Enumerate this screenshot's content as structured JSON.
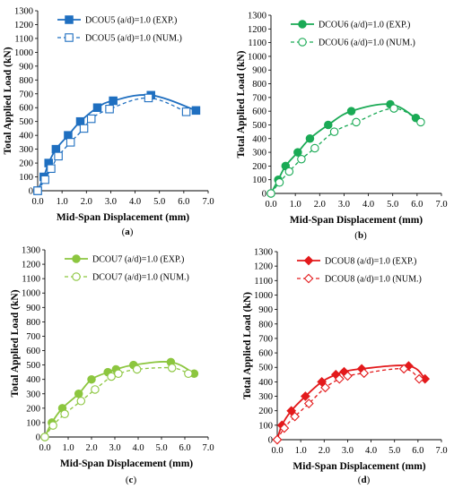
{
  "chart_data": [
    {
      "type": "line",
      "panel_label": "a",
      "xlabel": "Mid-Span Displacement (mm)",
      "ylabel": "Total Applied Load  (kN)",
      "xlim": [
        0,
        7
      ],
      "ylim": [
        0,
        1300
      ],
      "xticks": [
        "0.0",
        "1.0",
        "2.0",
        "3.0",
        "4.0",
        "5.0",
        "6.0",
        "7.0"
      ],
      "yticks": [
        "0",
        "100",
        "200",
        "300",
        "400",
        "500",
        "600",
        "700",
        "800",
        "900",
        "1000",
        "1100",
        "1200",
        "1300"
      ],
      "grid": false,
      "legend_position": "top-center",
      "color": "#1f6fc0",
      "marker": "square",
      "series": [
        {
          "name": "DCOU5 (a/d)=1.0 (EXP.)",
          "style": "solid",
          "fill": true,
          "x": [
            0,
            0.25,
            0.45,
            0.75,
            1.25,
            1.75,
            2.45,
            3.1,
            4.65,
            6.5
          ],
          "y": [
            0,
            100,
            200,
            300,
            400,
            500,
            600,
            650,
            690,
            580
          ]
        },
        {
          "name": "DCOU5 (a/d)=1.0 (NUM.)",
          "style": "dashed",
          "fill": false,
          "x": [
            0,
            0.3,
            0.55,
            0.85,
            1.35,
            1.9,
            2.2,
            2.95,
            4.55,
            6.1
          ],
          "y": [
            0,
            80,
            160,
            250,
            350,
            450,
            520,
            590,
            670,
            570
          ]
        }
      ]
    },
    {
      "type": "line",
      "panel_label": "b",
      "xlabel": "Mid-Span Displacement (mm)",
      "ylabel": "Total Applied Load  (kN)",
      "xlim": [
        0,
        7
      ],
      "ylim": [
        0,
        1300
      ],
      "xticks": [
        "0.0",
        "1.0",
        "2.0",
        "3.0",
        "4.0",
        "5.0",
        "6.0",
        "7.0"
      ],
      "yticks": [
        "0",
        "100",
        "200",
        "300",
        "400",
        "500",
        "600",
        "700",
        "800",
        "900",
        "1000",
        "1100",
        "1200",
        "1300"
      ],
      "grid": false,
      "legend_position": "top-center",
      "color": "#1aaa55",
      "marker": "circle",
      "series": [
        {
          "name": "DCOU6 (a/d)=1.0 (EXP.)",
          "style": "solid",
          "fill": true,
          "x": [
            0,
            0.3,
            0.6,
            1.1,
            1.6,
            2.35,
            3.3,
            4.9,
            5.95
          ],
          "y": [
            0,
            100,
            200,
            300,
            400,
            500,
            600,
            650,
            550
          ]
        },
        {
          "name": "DCOU6 (a/d)=1.0 (NUM.)",
          "style": "dashed",
          "fill": false,
          "x": [
            0,
            0.35,
            0.75,
            1.25,
            1.8,
            2.6,
            3.5,
            5.05,
            6.15
          ],
          "y": [
            0,
            80,
            160,
            250,
            330,
            450,
            520,
            620,
            520
          ]
        }
      ]
    },
    {
      "type": "line",
      "panel_label": "c",
      "xlabel": "Mid-Span Displacement (mm)",
      "ylabel": "Total Applied Load  (kN)",
      "xlim": [
        0,
        7
      ],
      "ylim": [
        0,
        1300
      ],
      "xticks": [
        "0.0",
        "1.0",
        "2.0",
        "3.0",
        "4.0",
        "5.0",
        "6.0",
        "7.0"
      ],
      "yticks": [
        "0",
        "100",
        "200",
        "300",
        "400",
        "500",
        "600",
        "700",
        "800",
        "900",
        "1000",
        "1100",
        "1200",
        "1300"
      ],
      "grid": false,
      "legend_position": "top-center",
      "color": "#8cc63f",
      "marker": "circle",
      "series": [
        {
          "name": "DCOU7 (a/d)=1.0 (EXP.)",
          "style": "solid",
          "fill": true,
          "x": [
            0,
            0.3,
            0.75,
            1.45,
            2.0,
            2.7,
            3.05,
            3.8,
            5.4,
            6.4
          ],
          "y": [
            0,
            100,
            200,
            300,
            400,
            450,
            470,
            500,
            520,
            440
          ]
        },
        {
          "name": "DCOU7 (a/d)=1.0 (NUM.)",
          "style": "dashed",
          "fill": false,
          "x": [
            0,
            0.35,
            0.85,
            1.55,
            2.15,
            2.85,
            3.15,
            3.95,
            5.45,
            6.15
          ],
          "y": [
            0,
            80,
            160,
            250,
            330,
            420,
            440,
            470,
            480,
            440
          ]
        }
      ]
    },
    {
      "type": "line",
      "panel_label": "d",
      "xlabel": "Mid-Span Displacement (mm)",
      "ylabel": "Total Applied Load  (kN)",
      "xlim": [
        0,
        7
      ],
      "ylim": [
        0,
        1300
      ],
      "xticks": [
        "0.0",
        "1.0",
        "2.0",
        "3.0",
        "4.0",
        "5.0",
        "6.0",
        "7.0"
      ],
      "yticks": [
        "0",
        "100",
        "200",
        "300",
        "400",
        "500",
        "600",
        "700",
        "800",
        "900",
        "1000",
        "1100",
        "1200",
        "1300"
      ],
      "grid": false,
      "legend_position": "top-center",
      "color": "#e31a1c",
      "marker": "diamond",
      "series": [
        {
          "name": "DCOU8 (a/d)=1.0 (EXP.)",
          "style": "solid",
          "fill": true,
          "x": [
            0,
            0.2,
            0.6,
            1.2,
            1.9,
            2.5,
            2.85,
            3.6,
            5.6,
            6.3
          ],
          "y": [
            0,
            100,
            200,
            300,
            400,
            450,
            470,
            490,
            510,
            420
          ]
        },
        {
          "name": "DCOU8 (a/d)=1.0 (NUM.)",
          "style": "dashed",
          "fill": false,
          "x": [
            0,
            0.3,
            0.75,
            1.35,
            2.05,
            2.65,
            3.0,
            3.7,
            5.4,
            6.05
          ],
          "y": [
            0,
            80,
            160,
            250,
            360,
            420,
            440,
            460,
            490,
            420
          ]
        }
      ]
    }
  ]
}
